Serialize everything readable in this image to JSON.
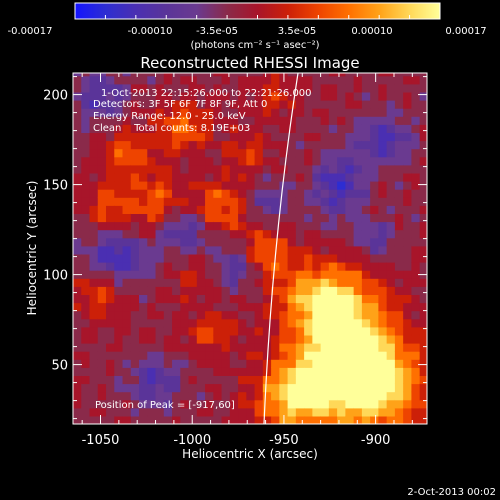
{
  "colorbar": {
    "ticks": [
      "-0.00017",
      "-0.00010",
      "-3.5e-05",
      "3.5e-05",
      "0.00010",
      "0.00017"
    ],
    "unit_label": "(photons cm⁻² s⁻¹ asec⁻²)"
  },
  "info": {
    "time_range": "1-Oct-2013 22:15:26.000 to 22:21:26.000",
    "detectors": "Detectors: 3F 5F 6F 7F 8F 9F, Att 0",
    "energy": "Energy Range: 12.0 - 25.0 keV",
    "clean": "Clean    Total counts: 8.19E+03",
    "peak": "Position of Peak = [-917,60]"
  },
  "footer": {
    "date": "2-Oct-2013 00:02"
  },
  "colors": {
    "background": "#000000",
    "limb": "#ffffff",
    "colormap": [
      "#1414ff",
      "#2d2dd2",
      "#4a2fb2",
      "#5a3499",
      "#6a3a90",
      "#8a2a4a",
      "#a8152a",
      "#cc2008",
      "#ee4400",
      "#ff7000",
      "#ffa218",
      "#ffd858",
      "#ffff9a"
    ]
  },
  "chart_data": {
    "type": "heatmap",
    "title": "Reconstructed RHESSI Image",
    "xlabel": "Heliocentric X (arcsec)",
    "ylabel": "Heliocentric Y (arcsec)",
    "xlim": [
      -1065,
      -872
    ],
    "ylim": [
      17,
      212
    ],
    "x_ticks": [
      -1050,
      -1000,
      -950,
      -900
    ],
    "y_ticks": [
      50,
      100,
      150,
      200
    ],
    "value_range": [
      -0.00017,
      0.00017
    ],
    "peak": [
      -917,
      60
    ],
    "grid": false
  }
}
